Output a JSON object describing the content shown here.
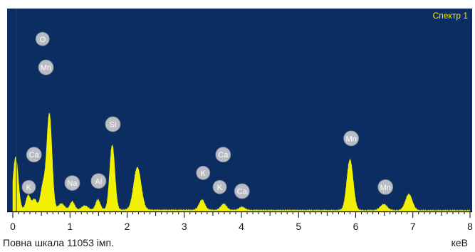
{
  "chart_data": {
    "type": "area",
    "spectrum_name": "Спектр 1",
    "full_scale_text": "Повна шкала 11053 імп.",
    "x_unit": "кеВ",
    "xlim": [
      0,
      8
    ],
    "ylim": [
      0,
      100
    ],
    "x_ticks": [
      "0",
      "1",
      "2",
      "3",
      "4",
      "5",
      "6",
      "7",
      "8"
    ],
    "background_color": "#0c2d62",
    "fill_color": "#f2f200",
    "label_color": "#b8bcc4",
    "title_color": "#f2f200",
    "peaks": [
      {
        "x": 0.05,
        "height": 26,
        "width": 0.045
      },
      {
        "x": 0.27,
        "height": 7,
        "width": 0.04
      },
      {
        "x": 0.38,
        "height": 5,
        "width": 0.04
      },
      {
        "x": 0.53,
        "height": 12,
        "width": 0.045
      },
      {
        "x": 0.64,
        "height": 47,
        "width": 0.045
      },
      {
        "x": 0.85,
        "height": 3,
        "width": 0.05
      },
      {
        "x": 1.04,
        "height": 4,
        "width": 0.04
      },
      {
        "x": 1.26,
        "height": 2,
        "width": 0.05
      },
      {
        "x": 1.49,
        "height": 5,
        "width": 0.04
      },
      {
        "x": 1.74,
        "height": 32,
        "width": 0.045
      },
      {
        "x": 2.18,
        "height": 21,
        "width": 0.065
      },
      {
        "x": 3.31,
        "height": 5,
        "width": 0.05
      },
      {
        "x": 3.69,
        "height": 3,
        "width": 0.05
      },
      {
        "x": 4.01,
        "height": 1.5,
        "width": 0.05
      },
      {
        "x": 5.9,
        "height": 25,
        "width": 0.055
      },
      {
        "x": 6.49,
        "height": 3,
        "width": 0.06
      },
      {
        "x": 6.93,
        "height": 8,
        "width": 0.06
      }
    ],
    "baseline": 0.8,
    "element_labels": [
      {
        "label": "O",
        "x": 0.52,
        "y": 85
      },
      {
        "label": "Mn",
        "x": 0.58,
        "y": 71
      },
      {
        "label": "Ca",
        "x": 0.37,
        "y": 28
      },
      {
        "label": "K",
        "x": 0.28,
        "y": 12
      },
      {
        "label": "Na",
        "x": 1.04,
        "y": 14
      },
      {
        "label": "Al",
        "x": 1.5,
        "y": 15
      },
      {
        "label": "Si",
        "x": 1.75,
        "y": 43
      },
      {
        "label": "K",
        "x": 3.33,
        "y": 19
      },
      {
        "label": "Ca",
        "x": 3.68,
        "y": 28
      },
      {
        "label": "K",
        "x": 3.62,
        "y": 12
      },
      {
        "label": "Ca",
        "x": 4.01,
        "y": 10
      },
      {
        "label": "Mn",
        "x": 5.92,
        "y": 36
      },
      {
        "label": "Mn",
        "x": 6.52,
        "y": 12
      }
    ]
  }
}
